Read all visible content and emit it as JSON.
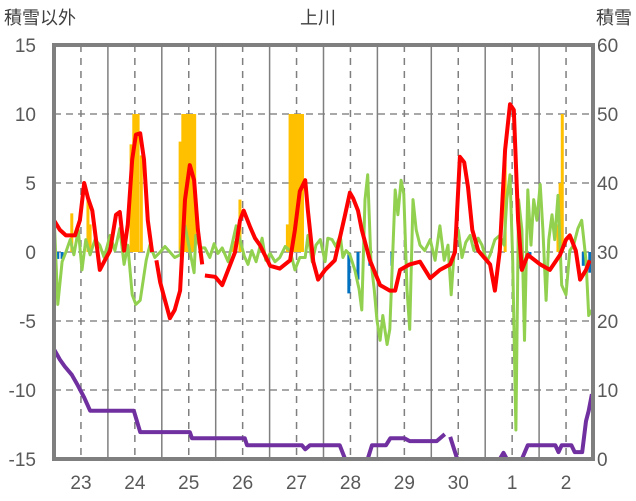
{
  "chart_data": {
    "type": "line",
    "title": "上川",
    "ylabel_left": "積雪以外",
    "ylabel_right": "積雪",
    "ylim_left": [
      -15,
      15
    ],
    "ylim_right": [
      0,
      60
    ],
    "yticks_left": [
      "15",
      "10",
      "5",
      "0",
      "-5",
      "-10",
      "-15"
    ],
    "yticks_right": [
      "60",
      "50",
      "40",
      "30",
      "20",
      "10",
      "0"
    ],
    "xlim": [
      0,
      10
    ],
    "xtick_labels": [
      "23",
      "24",
      "25",
      "26",
      "27",
      "28",
      "29",
      "30",
      "1",
      "2"
    ],
    "grid": true,
    "colors": {
      "red": "#ff0000",
      "green": "#92d050",
      "purple": "#7030a0",
      "orange": "#ffc000",
      "blue": "#0070c0",
      "frame": "#7f7f7f"
    },
    "orange_bars": [
      [
        0.33,
        2.8
      ],
      [
        0.63,
        3.8
      ],
      [
        0.67,
        2.0
      ],
      [
        1.43,
        7.8
      ],
      [
        1.48,
        10
      ],
      [
        1.52,
        10
      ],
      [
        1.56,
        10
      ],
      [
        1.62,
        7.0
      ],
      [
        2.34,
        8.0
      ],
      [
        2.39,
        10
      ],
      [
        2.43,
        10
      ],
      [
        2.48,
        10
      ],
      [
        2.52,
        10
      ],
      [
        2.57,
        10
      ],
      [
        2.61,
        10
      ],
      [
        3.33,
        0.8
      ],
      [
        3.45,
        3.8
      ],
      [
        4.33,
        2.0
      ],
      [
        4.38,
        10
      ],
      [
        4.43,
        10
      ],
      [
        4.48,
        10
      ],
      [
        4.52,
        10
      ],
      [
        4.57,
        10
      ],
      [
        4.61,
        10
      ],
      [
        8.37,
        7.0
      ],
      [
        9.35,
        2.0
      ],
      [
        9.39,
        5.0
      ],
      [
        9.43,
        10
      ]
    ],
    "blue_bars": [
      [
        0.07,
        -0.5
      ],
      [
        0.15,
        -0.5
      ],
      [
        5.47,
        -3.0
      ],
      [
        5.64,
        -2.0
      ],
      [
        5.86,
        -1.0
      ],
      [
        6.27,
        -1.0
      ],
      [
        8.64,
        -1.2
      ],
      [
        8.83,
        -0.3
      ],
      [
        9.82,
        -1.0
      ],
      [
        9.94,
        -1.5
      ]
    ],
    "red": [
      [
        0,
        2.3
      ],
      [
        0.11,
        1.6
      ],
      [
        0.22,
        1.2
      ],
      [
        0.39,
        1.2
      ],
      [
        0.48,
        2.3
      ],
      [
        0.56,
        5.0
      ],
      [
        0.63,
        3.9
      ],
      [
        0.71,
        3.0
      ],
      [
        0.78,
        0.9
      ],
      [
        0.85,
        -1.3
      ],
      [
        0.93,
        -0.7
      ],
      [
        1.04,
        0.1
      ],
      [
        1.15,
        2.7
      ],
      [
        1.22,
        2.9
      ],
      [
        1.3,
        0.1
      ],
      [
        1.37,
        2.0
      ],
      [
        1.45,
        6.7
      ],
      [
        1.52,
        8.5
      ],
      [
        1.6,
        8.6
      ],
      [
        1.67,
        6.7
      ],
      [
        1.74,
        2.3
      ],
      [
        1.82,
        0
      ],
      [
        1.85,
        null
      ],
      [
        1.9,
        -0.6
      ],
      [
        1.97,
        -2.2
      ],
      [
        2.06,
        -3.5
      ],
      [
        2.15,
        -4.8
      ],
      [
        2.24,
        -4.2
      ],
      [
        2.34,
        -2.8
      ],
      [
        2.43,
        3.8
      ],
      [
        2.52,
        6.3
      ],
      [
        2.6,
        5.2
      ],
      [
        2.67,
        1.6
      ],
      [
        2.75,
        -0.9
      ],
      [
        2.77,
        null
      ],
      [
        2.8,
        -1.7
      ],
      [
        2.99,
        -1.8
      ],
      [
        3.12,
        -2.4
      ],
      [
        3.27,
        -0.9
      ],
      [
        3.36,
        0
      ],
      [
        3.45,
        2.3
      ],
      [
        3.52,
        3.0
      ],
      [
        3.64,
        1.8
      ],
      [
        3.73,
        1.0
      ],
      [
        3.82,
        0.5
      ],
      [
        4.01,
        -1.0
      ],
      [
        4.19,
        -1.2
      ],
      [
        4.38,
        -0.6
      ],
      [
        4.47,
        1.6
      ],
      [
        4.56,
        4.4
      ],
      [
        4.66,
        5.2
      ],
      [
        4.71,
        3.0
      ],
      [
        4.81,
        -0.7
      ],
      [
        4.9,
        -2.0
      ],
      [
        5.03,
        -1.3
      ],
      [
        5.21,
        -0.6
      ],
      [
        5.4,
        2.7
      ],
      [
        5.49,
        4.3
      ],
      [
        5.55,
        3.9
      ],
      [
        5.64,
        3.0
      ],
      [
        5.71,
        1.6
      ],
      [
        5.86,
        -0.6
      ],
      [
        6.05,
        -2.4
      ],
      [
        6.23,
        -2.8
      ],
      [
        6.33,
        -2.8
      ],
      [
        6.42,
        -1.3
      ],
      [
        6.6,
        -0.9
      ],
      [
        6.79,
        -0.7
      ],
      [
        6.98,
        -1.9
      ],
      [
        7.16,
        -1.3
      ],
      [
        7.35,
        -0.9
      ],
      [
        7.44,
        0
      ],
      [
        7.53,
        6.9
      ],
      [
        7.61,
        6.5
      ],
      [
        7.68,
        4.7
      ],
      [
        7.76,
        1.6
      ],
      [
        7.87,
        0.1
      ],
      [
        8.09,
        -0.9
      ],
      [
        8.18,
        -2.8
      ],
      [
        8.27,
        0.1
      ],
      [
        8.37,
        7.4
      ],
      [
        8.46,
        10.7
      ],
      [
        8.53,
        10.3
      ],
      [
        8.61,
        2.3
      ],
      [
        8.68,
        -1.3
      ],
      [
        8.79,
        -0.2
      ],
      [
        9.02,
        -0.9
      ],
      [
        9.2,
        -1.3
      ],
      [
        9.39,
        -0.2
      ],
      [
        9.5,
        0.9
      ],
      [
        9.57,
        1.2
      ],
      [
        9.68,
        0.1
      ],
      [
        9.76,
        -2.0
      ],
      [
        9.87,
        -1.3
      ],
      [
        9.94,
        -0.6
      ]
    ],
    "green": [
      [
        0,
        2.7
      ],
      [
        0.07,
        -3.8
      ],
      [
        0.15,
        -0.7
      ],
      [
        0.22,
        0
      ],
      [
        0.3,
        0.9
      ],
      [
        0.37,
        -0.2
      ],
      [
        0.45,
        1.6
      ],
      [
        0.52,
        -1.3
      ],
      [
        0.59,
        0.9
      ],
      [
        0.67,
        -0.2
      ],
      [
        0.76,
        0.9
      ],
      [
        0.85,
        0.5
      ],
      [
        0.93,
        -0.4
      ],
      [
        1.04,
        1.2
      ],
      [
        1.13,
        0.1
      ],
      [
        1.22,
        1.7
      ],
      [
        1.3,
        -0.9
      ],
      [
        1.37,
        0.5
      ],
      [
        1.45,
        -3.1
      ],
      [
        1.52,
        -3.8
      ],
      [
        1.6,
        -3.5
      ],
      [
        1.71,
        -0.6
      ],
      [
        1.78,
        0.5
      ],
      [
        1.87,
        -0.4
      ],
      [
        1.97,
        0
      ],
      [
        2.06,
        0.4
      ],
      [
        2.15,
        0
      ],
      [
        2.24,
        -0.4
      ],
      [
        2.34,
        -0.2
      ],
      [
        2.43,
        1.9
      ],
      [
        2.52,
        0.1
      ],
      [
        2.6,
        -1.5
      ],
      [
        2.63,
        1.2
      ],
      [
        2.71,
        0.3
      ],
      [
        2.8,
        0.3
      ],
      [
        2.89,
        -0.4
      ],
      [
        2.97,
        0.6
      ],
      [
        3.04,
        -0.1
      ],
      [
        3.12,
        0.3
      ],
      [
        3.23,
        -0.7
      ],
      [
        3.3,
        0.5
      ],
      [
        3.38,
        1.9
      ],
      [
        3.45,
        0.9
      ],
      [
        3.53,
        -0.3
      ],
      [
        3.6,
        -0.9
      ],
      [
        3.67,
        0.1
      ],
      [
        3.75,
        -0.7
      ],
      [
        3.86,
        1.0
      ],
      [
        3.93,
        -0.6
      ],
      [
        4.01,
        -0.1
      ],
      [
        4.1,
        -0.7
      ],
      [
        4.19,
        -0.4
      ],
      [
        4.29,
        0.4
      ],
      [
        4.38,
        0.1
      ],
      [
        4.47,
        -1.3
      ],
      [
        4.56,
        -0.4
      ],
      [
        4.66,
        -0.4
      ],
      [
        4.71,
        1.2
      ],
      [
        4.79,
        -0.7
      ],
      [
        4.86,
        0.5
      ],
      [
        4.94,
        0.9
      ],
      [
        5.03,
        -0.7
      ],
      [
        5.08,
        1.0
      ],
      [
        5.16,
        0.9
      ],
      [
        5.23,
        0.4
      ],
      [
        5.31,
        1.2
      ],
      [
        5.36,
        -0.4
      ],
      [
        5.42,
        0.1
      ],
      [
        5.49,
        -0.2
      ],
      [
        5.58,
        -1.3
      ],
      [
        5.66,
        -2.7
      ],
      [
        5.71,
        -4.2
      ],
      [
        5.77,
        3.8
      ],
      [
        5.82,
        5.6
      ],
      [
        5.88,
        -0.6
      ],
      [
        5.94,
        -2.7
      ],
      [
        5.99,
        -4.9
      ],
      [
        6.05,
        -6.4
      ],
      [
        6.1,
        -4.6
      ],
      [
        6.18,
        -6.7
      ],
      [
        6.23,
        -5.6
      ],
      [
        6.33,
        4.5
      ],
      [
        6.38,
        2.7
      ],
      [
        6.44,
        5.2
      ],
      [
        6.49,
        4.2
      ],
      [
        6.55,
        -2.7
      ],
      [
        6.6,
        -5.6
      ],
      [
        6.66,
        3.8
      ],
      [
        6.72,
        1.6
      ],
      [
        6.79,
        0.5
      ],
      [
        6.88,
        0.1
      ],
      [
        6.98,
        0.9
      ],
      [
        7.07,
        -0.6
      ],
      [
        7.16,
        1.9
      ],
      [
        7.24,
        -0.6
      ],
      [
        7.31,
        0.5
      ],
      [
        7.37,
        -3.1
      ],
      [
        7.44,
        0.9
      ],
      [
        7.5,
        1.6
      ],
      [
        7.57,
        -0.4
      ],
      [
        7.64,
        0.7
      ],
      [
        7.72,
        1.2
      ],
      [
        7.79,
        0.1
      ],
      [
        7.87,
        1.0
      ],
      [
        7.94,
        0.5
      ],
      [
        8.03,
        -0.7
      ],
      [
        8.09,
        -0.2
      ],
      [
        8.18,
        0.9
      ],
      [
        8.27,
        1.2
      ],
      [
        8.35,
        0.5
      ],
      [
        8.4,
        3.8
      ],
      [
        8.46,
        5.6
      ],
      [
        8.51,
        -0.6
      ],
      [
        8.57,
        -12.9
      ],
      [
        8.62,
        3.8
      ],
      [
        8.68,
        1.6
      ],
      [
        8.73,
        -6.4
      ],
      [
        8.79,
        4.5
      ],
      [
        8.85,
        0.5
      ],
      [
        8.9,
        3.8
      ],
      [
        8.96,
        2.3
      ],
      [
        9.02,
        4.9
      ],
      [
        9.07,
        1.6
      ],
      [
        9.13,
        -3.5
      ],
      [
        9.18,
        0.9
      ],
      [
        9.24,
        2.7
      ],
      [
        9.29,
        0.9
      ],
      [
        9.35,
        4.1
      ],
      [
        9.42,
        -2.4
      ],
      [
        9.5,
        -3.1
      ],
      [
        9.57,
        0.1
      ],
      [
        9.64,
        0.5
      ],
      [
        9.72,
        1.7
      ],
      [
        9.79,
        2.3
      ],
      [
        9.87,
        -0.6
      ],
      [
        9.92,
        -4.6
      ],
      [
        9.98,
        -4.2
      ]
    ],
    "purple_right": [
      [
        0,
        15.9
      ],
      [
        0.11,
        14.4
      ],
      [
        0.2,
        13.4
      ],
      [
        0.33,
        12.2
      ],
      [
        0.44,
        10.7
      ],
      [
        0.56,
        8.9
      ],
      [
        0.67,
        7.0
      ],
      [
        0.82,
        7.0
      ],
      [
        1.48,
        7.0
      ],
      [
        1.6,
        3.9
      ],
      [
        2.52,
        3.9
      ],
      [
        2.56,
        3.0
      ],
      [
        3.54,
        3.0
      ],
      [
        3.58,
        2.0
      ],
      [
        4.6,
        2.0
      ],
      [
        4.66,
        1.4
      ],
      [
        4.75,
        2.0
      ],
      [
        5.3,
        2.0
      ],
      [
        5.4,
        0
      ],
      [
        5.82,
        0
      ],
      [
        5.9,
        2.0
      ],
      [
        6.16,
        2.0
      ],
      [
        6.24,
        3.0
      ],
      [
        6.5,
        3.0
      ],
      [
        6.6,
        2.6
      ],
      [
        7.1,
        2.6
      ],
      [
        7.25,
        3.6
      ],
      [
        7.26,
        null
      ],
      [
        7.35,
        3.2
      ],
      [
        7.48,
        0
      ],
      [
        8.27,
        0
      ],
      [
        8.34,
        0.9
      ],
      [
        8.4,
        0
      ],
      [
        8.68,
        0
      ],
      [
        8.79,
        2.0
      ],
      [
        9.3,
        2.0
      ],
      [
        9.36,
        1.0
      ],
      [
        9.42,
        2.0
      ],
      [
        9.6,
        2.0
      ],
      [
        9.66,
        1.0
      ],
      [
        9.8,
        1.0
      ],
      [
        9.87,
        5.5
      ],
      [
        9.92,
        7.0
      ],
      [
        9.98,
        9.4
      ]
    ]
  }
}
